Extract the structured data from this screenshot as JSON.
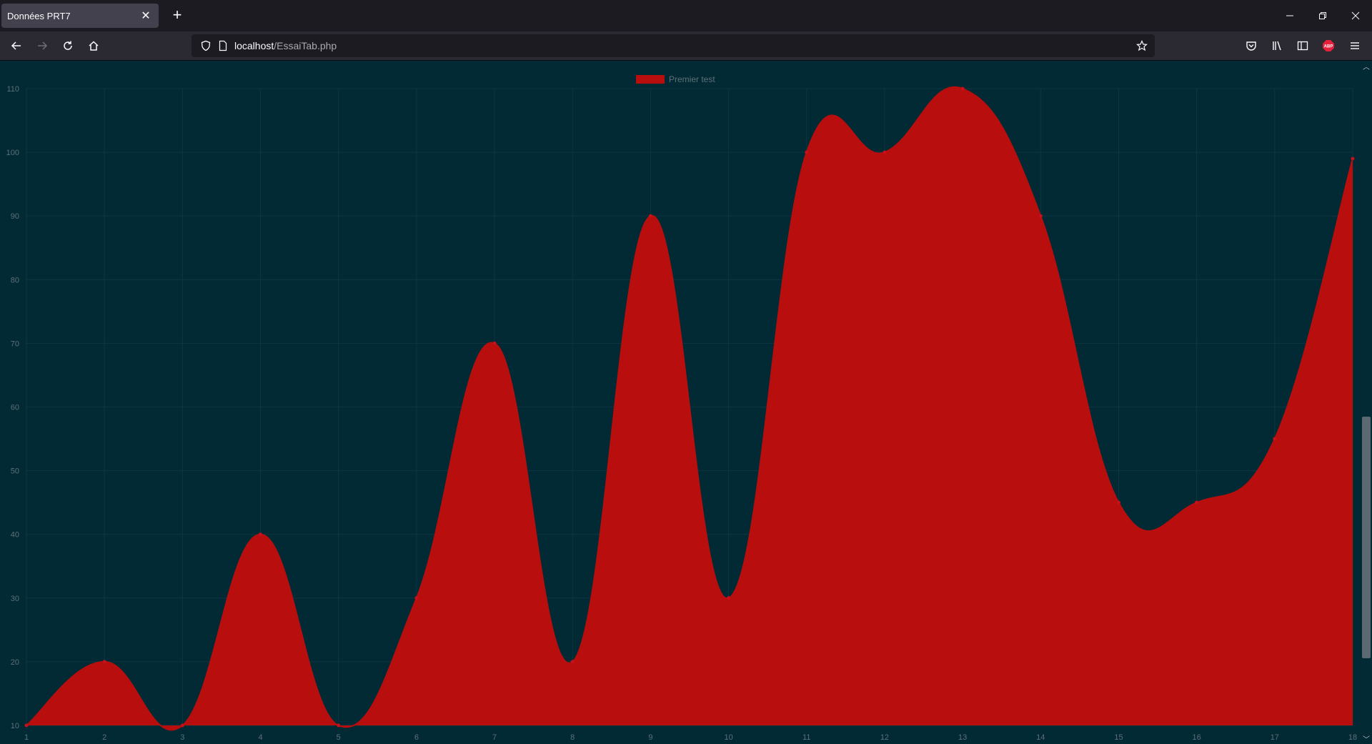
{
  "browser": {
    "tab_title": "Données PRT7",
    "url_host": "localhost",
    "url_path": "/EssaiTab.php"
  },
  "chart_data": {
    "type": "area",
    "x": [
      "1",
      "2",
      "3",
      "4",
      "5",
      "6",
      "7",
      "8",
      "9",
      "10",
      "11",
      "12",
      "13",
      "14",
      "15",
      "16",
      "17",
      "18"
    ],
    "series": [
      {
        "name": "Premier test",
        "values": [
          10,
          20,
          10,
          40,
          10,
          30,
          70,
          20,
          90,
          30,
          100,
          100,
          110,
          90,
          45,
          45,
          55,
          99
        ]
      }
    ],
    "ylim": [
      10,
      110
    ],
    "yticks": [
      10,
      20,
      30,
      40,
      50,
      60,
      70,
      80,
      90,
      100,
      110
    ],
    "legend_position": "top-center",
    "grid": true,
    "colors": {
      "fill": "#b90e0e",
      "point": "#c8101a",
      "background": "#022a35",
      "grid": "#0e3540",
      "tick_text": "#5e7078"
    }
  }
}
